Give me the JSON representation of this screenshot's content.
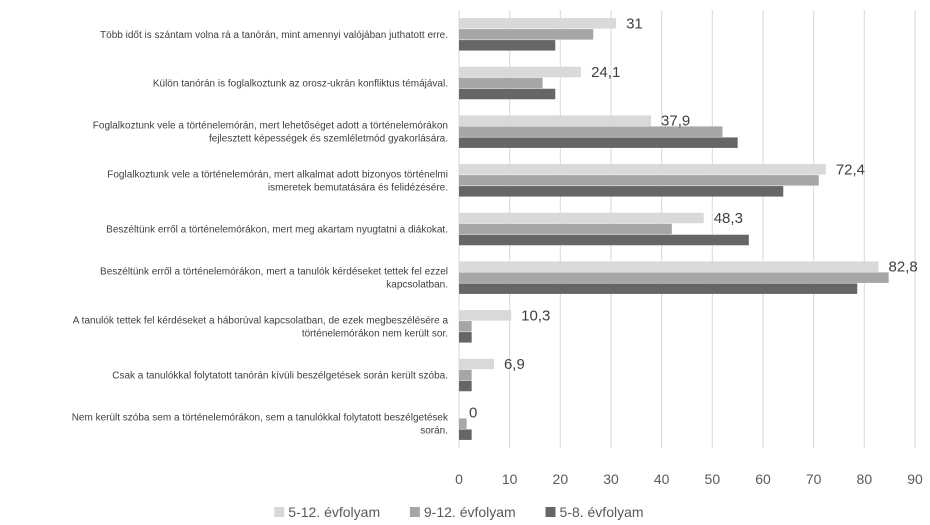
{
  "chart_data": {
    "type": "bar",
    "orientation": "horizontal",
    "categories": [
      [
        "Több időt is szántam volna rá a tanórán, mint amennyi valójában juthatott erre."
      ],
      [
        "Külön tanórán is foglalkoztunk az orosz-ukrán konfliktus témájával."
      ],
      [
        "Foglalkoztunk vele a történelemórán, mert lehetőséget adott a történelemórákon",
        "fejlesztett képességek és szemléletmód gyakorlására."
      ],
      [
        "Foglalkoztunk vele a történelemórán, mert alkalmat adott bizonyos történelmi",
        "ismeretek bemutatására és felidézésére."
      ],
      [
        "Beszéltünk erről a történelemórákon, mert meg akartam nyugtatni a diákokat."
      ],
      [
        "Beszéltünk erről a történelemórákon, mert a tanulók kérdéseket tettek fel ezzel",
        "kapcsolatban."
      ],
      [
        "A tanulók tettek fel kérdéseket a háborúval kapcsolatban, de ezek megbeszélésére a",
        "történelemórákon nem került sor."
      ],
      [
        "Csak a tanulókkal folytatott tanórán kívüli beszélgetések során került szóba."
      ],
      [
        "Nem került szóba sem a történelemórákon, sem a tanulókkal folytatott beszélgetések",
        "során."
      ]
    ],
    "series": [
      {
        "name": "5-12. évfolyam",
        "color": "#d9d9d9",
        "values": [
          31,
          24.1,
          37.9,
          72.4,
          48.3,
          82.8,
          10.3,
          6.9,
          0
        ],
        "labels": [
          "31",
          "24,1",
          "37,9",
          "72,4",
          "48,3",
          "82,8",
          "10,3",
          "6,9",
          "0"
        ]
      },
      {
        "name": "9-12. évfolyam",
        "color": "#a6a6a6",
        "values": [
          26.5,
          16.5,
          52,
          71,
          42,
          84.8,
          2.5,
          2.5,
          1.5
        ]
      },
      {
        "name": "5-8. évfolyam",
        "color": "#666666",
        "values": [
          19,
          19,
          55,
          64,
          57.2,
          78.6,
          2.5,
          2.5,
          2.5
        ]
      }
    ],
    "xticks": [
      "0",
      "10",
      "20",
      "30",
      "40",
      "50",
      "60",
      "70",
      "80",
      "90"
    ],
    "xlim": [
      0,
      90
    ],
    "grid": true,
    "legend_position": "bottom"
  }
}
